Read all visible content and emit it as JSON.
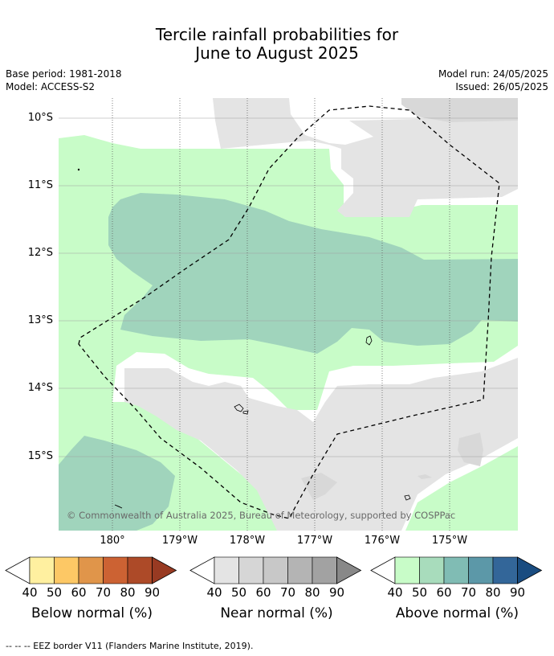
{
  "header": {
    "title_line1": "Tercile rainfall probabilities for",
    "title_line2": "June to August 2025",
    "base_period": "Base period: 1981-2018",
    "model": "Model: ACCESS-S2",
    "model_run": "Model run: 24/05/2025",
    "issued": "Issued: 26/05/2025"
  },
  "map": {
    "lat_labels": [
      "10°S",
      "11°S",
      "12°S",
      "13°S",
      "14°S",
      "15°S"
    ],
    "lon_labels": [
      "180°",
      "179°W",
      "178°W",
      "177°W",
      "176°W",
      "175°W"
    ],
    "copyright": "© Commonwealth of Australia 2025, Bureau of Meteorology, supported by COSPPac",
    "colors": {
      "above_40": "#c8fcc8",
      "above_50": "#a0d4bc",
      "near_40": "#e4e4e4",
      "near_50": "#d8d8d8",
      "eez_line": "#000000"
    }
  },
  "colorbars": [
    {
      "title": "Below normal (%)",
      "ticks": [
        "40",
        "50",
        "60",
        "70",
        "80",
        "90"
      ],
      "colors": [
        "#fff0a0",
        "#fdc865",
        "#e0954a",
        "#cc6233",
        "#ad4a28",
        "#983a22"
      ]
    },
    {
      "title": "Near normal (%)",
      "ticks": [
        "40",
        "50",
        "60",
        "70",
        "80",
        "90"
      ],
      "colors": [
        "#e4e4e4",
        "#d6d6d6",
        "#c8c8c8",
        "#b4b4b4",
        "#a2a2a2",
        "#888888"
      ]
    },
    {
      "title": "Above normal (%)",
      "ticks": [
        "40",
        "50",
        "60",
        "70",
        "80",
        "90"
      ],
      "colors": [
        "#c8fcc8",
        "#a8dcbc",
        "#80bcb4",
        "#5c98a8",
        "#336699",
        "#1a4c80"
      ]
    }
  ],
  "footer": {
    "legend": "-- -- -- EEZ border V11 (Flanders Marine Institute, 2019)."
  }
}
